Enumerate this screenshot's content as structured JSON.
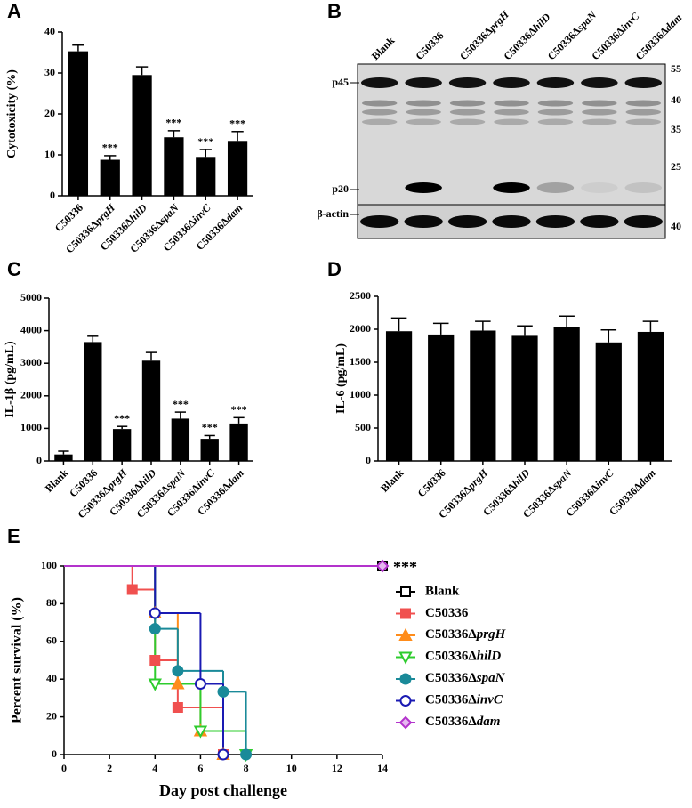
{
  "chart_data": [
    {
      "type": "bar",
      "panel": "A",
      "ylabel": "Cytotoxicity (%)",
      "categories": [
        "C50336",
        "C50336ΔprgH",
        "C50336ΔhilD",
        "C50336ΔspaN",
        "C50336ΔinvC",
        "C50336Δdam"
      ],
      "values": [
        35.3,
        8.8,
        29.5,
        14.3,
        9.5,
        13.2
      ],
      "errors": [
        1.5,
        1.0,
        2.0,
        1.6,
        1.8,
        2.5
      ],
      "annotations": [
        null,
        "***",
        null,
        "***",
        "***",
        "***"
      ],
      "color": "#000000",
      "ylim": [
        0,
        40
      ],
      "yticks": [
        0,
        10,
        20,
        30,
        40
      ]
    },
    {
      "type": "blot",
      "panel": "B",
      "lanes": [
        "Blank",
        "C50336",
        "C50336ΔprgH",
        "C50336ΔhilD",
        "C50336ΔspaN",
        "C50336ΔinvC",
        "C50336Δdam"
      ],
      "left_labels": [
        "p45",
        "p20",
        "β-actin"
      ],
      "right_labels": [
        "55",
        "40",
        "35",
        "25",
        "40"
      ]
    },
    {
      "type": "bar",
      "panel": "C",
      "ylabel": "IL-1β (pg/mL)",
      "categories": [
        "Blank",
        "C50336",
        "C50336ΔprgH",
        "C50336ΔhilD",
        "C50336ΔspaN",
        "C50336ΔinvC",
        "C50336Δdam"
      ],
      "values": [
        200,
        3650,
        980,
        3080,
        1300,
        680,
        1150
      ],
      "errors": [
        100,
        180,
        80,
        250,
        200,
        100,
        180
      ],
      "annotations": [
        null,
        null,
        "***",
        null,
        "***",
        "***",
        "***"
      ],
      "color": "#000000",
      "ylim": [
        0,
        5000
      ],
      "yticks": [
        0,
        1000,
        2000,
        3000,
        4000,
        5000
      ]
    },
    {
      "type": "bar",
      "panel": "D",
      "ylabel": "IL-6 (pg/mL)",
      "categories": [
        "Blank",
        "C50336",
        "C50336ΔprgH",
        "C50336ΔhilD",
        "C50336ΔspaN",
        "C50336ΔinvC",
        "C50336Δdam"
      ],
      "values": [
        1970,
        1920,
        1980,
        1900,
        2040,
        1800,
        1960
      ],
      "errors": [
        200,
        170,
        140,
        150,
        160,
        190,
        160
      ],
      "color": "#000000",
      "ylim": [
        0,
        2500
      ],
      "yticks": [
        0,
        500,
        1000,
        1500,
        2000,
        2500
      ]
    },
    {
      "type": "survival",
      "panel": "E",
      "xlabel": "Day post challenge",
      "ylabel": "Percent survival (%)",
      "annotation": "***",
      "xlim": [
        0,
        14
      ],
      "xticks": [
        0,
        2,
        4,
        6,
        8,
        10,
        12,
        14
      ],
      "ylim": [
        0,
        100
      ],
      "yticks": [
        0,
        20,
        40,
        60,
        80,
        100
      ],
      "series": [
        {
          "name": "Blank",
          "color": "#000000",
          "marker": "open-square",
          "x": [
            0,
            14
          ],
          "values": [
            100,
            100
          ]
        },
        {
          "name": "C50336",
          "color": "#f0504f",
          "marker": "square",
          "x": [
            0,
            3,
            4,
            5,
            7
          ],
          "values": [
            100,
            87.5,
            50,
            25,
            0
          ]
        },
        {
          "name": "C50336ΔprgH",
          "color": "#ff8c1a",
          "marker": "triangle",
          "x": [
            0,
            4,
            5,
            6,
            7
          ],
          "values": [
            100,
            75,
            37.5,
            12.5,
            0
          ]
        },
        {
          "name": "C50336ΔhilD",
          "color": "#2ecc2e",
          "marker": "open-down-triangle",
          "x": [
            0,
            4,
            6,
            8
          ],
          "values": [
            100,
            37.5,
            12.5,
            0
          ]
        },
        {
          "name": "C50336ΔspaN",
          "color": "#1a8a99",
          "marker": "circle",
          "x": [
            0,
            4,
            5,
            7,
            8
          ],
          "values": [
            100,
            66.7,
            44.4,
            33.3,
            0
          ]
        },
        {
          "name": "C50336ΔinvC",
          "color": "#1a1ab3",
          "marker": "open-circle",
          "x": [
            0,
            4,
            6,
            7
          ],
          "values": [
            100,
            75,
            37.5,
            0
          ]
        },
        {
          "name": "C50336Δdam",
          "color": "#b333cc",
          "marker": "diamond",
          "x": [
            0,
            14
          ],
          "values": [
            100,
            100
          ]
        }
      ]
    }
  ]
}
